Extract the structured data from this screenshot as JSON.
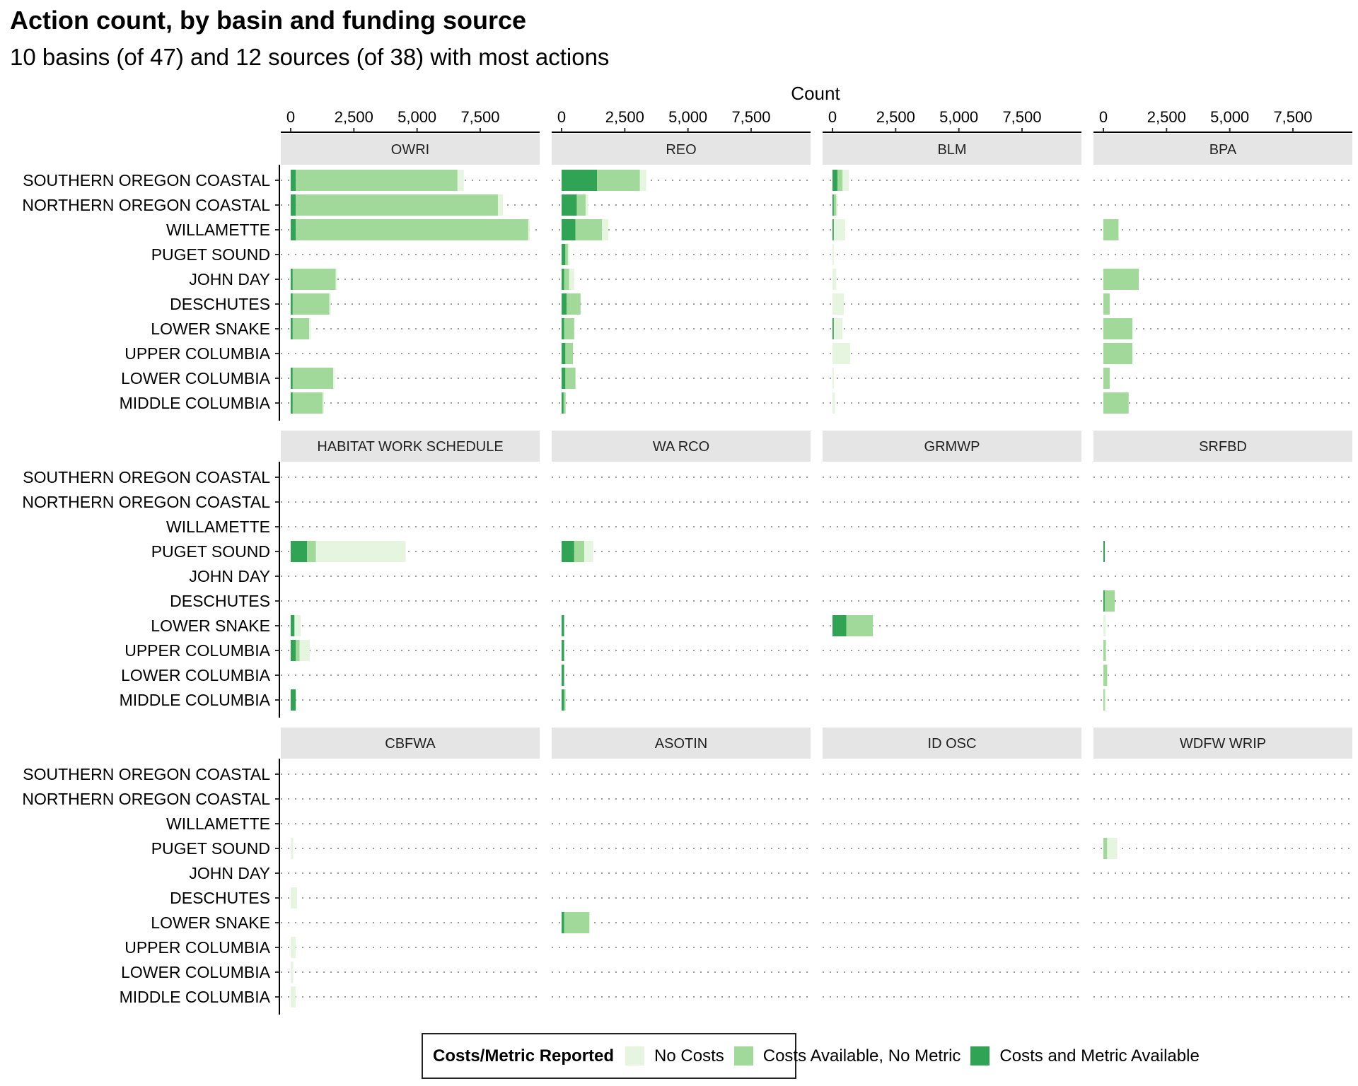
{
  "title": "Action count, by basin and funding source",
  "subtitle": "10 basins (of 47) and 12 sources (of 38) with most actions",
  "chart_data": {
    "type": "bar",
    "orientation": "horizontal",
    "stacked": true,
    "xlabel": "Count",
    "x_axis_position": "top",
    "xlim": [
      0,
      10000
    ],
    "x_ticks": [
      0,
      2500,
      5000,
      7500
    ],
    "x_tick_labels": [
      "0",
      "2,500",
      "5,000",
      "7,500"
    ],
    "grid": "dotted horizontal",
    "legend_position": "bottom",
    "legend_title": "Costs/Metric Reported",
    "colors": {
      "No Costs": "#e5f5e0",
      "Costs Available, No Metric": "#a1d99b",
      "Costs and Metric Available": "#31a354"
    },
    "categories": [
      "SOUTHERN OREGON COASTAL",
      "NORTHERN OREGON COASTAL",
      "WILLAMETTE",
      "PUGET SOUND",
      "JOHN DAY",
      "DESCHUTES",
      "LOWER SNAKE",
      "UPPER COLUMBIA",
      "LOWER COLUMBIA",
      "MIDDLE COLUMBIA"
    ],
    "series_names": [
      "Costs and Metric Available",
      "Costs Available, No Metric",
      "No Costs"
    ],
    "panels": [
      {
        "name": "OWRI",
        "values": [
          [
            200,
            6400,
            250
          ],
          [
            200,
            8000,
            200
          ],
          [
            200,
            9200,
            50
          ],
          [
            0,
            0,
            0
          ],
          [
            80,
            1700,
            20
          ],
          [
            80,
            1450,
            20
          ],
          [
            80,
            650,
            20
          ],
          [
            0,
            0,
            0
          ],
          [
            80,
            1600,
            20
          ],
          [
            80,
            1180,
            20
          ]
        ]
      },
      {
        "name": "REO",
        "values": [
          [
            1400,
            1700,
            250
          ],
          [
            600,
            350,
            100
          ],
          [
            550,
            1050,
            250
          ],
          [
            150,
            100,
            50
          ],
          [
            100,
            200,
            200
          ],
          [
            200,
            550,
            0
          ],
          [
            100,
            400,
            0
          ],
          [
            150,
            300,
            0
          ],
          [
            150,
            400,
            0
          ],
          [
            80,
            80,
            0
          ]
        ]
      },
      {
        "name": "BLM",
        "values": [
          [
            200,
            200,
            250
          ],
          [
            50,
            100,
            50
          ],
          [
            50,
            0,
            450
          ],
          [
            0,
            0,
            50
          ],
          [
            0,
            0,
            150
          ],
          [
            0,
            0,
            450
          ],
          [
            50,
            0,
            350
          ],
          [
            0,
            0,
            700
          ],
          [
            0,
            0,
            50
          ],
          [
            0,
            0,
            100
          ]
        ]
      },
      {
        "name": "BPA",
        "values": [
          [
            0,
            0,
            0
          ],
          [
            0,
            0,
            0
          ],
          [
            0,
            600,
            0
          ],
          [
            0,
            0,
            0
          ],
          [
            0,
            1400,
            0
          ],
          [
            0,
            250,
            0
          ],
          [
            0,
            1150,
            0
          ],
          [
            0,
            1150,
            0
          ],
          [
            0,
            250,
            0
          ],
          [
            0,
            1000,
            0
          ]
        ]
      },
      {
        "name": "HABITAT WORK SCHEDULE",
        "values": [
          [
            0,
            0,
            0
          ],
          [
            0,
            0,
            0
          ],
          [
            0,
            0,
            0
          ],
          [
            650,
            350,
            3550
          ],
          [
            0,
            0,
            0
          ],
          [
            0,
            0,
            0
          ],
          [
            150,
            0,
            250
          ],
          [
            200,
            150,
            400
          ],
          [
            0,
            0,
            0
          ],
          [
            200,
            0,
            0
          ]
        ]
      },
      {
        "name": "WA RCO",
        "values": [
          [
            0,
            0,
            0
          ],
          [
            0,
            0,
            0
          ],
          [
            0,
            0,
            0
          ],
          [
            500,
            400,
            350
          ],
          [
            0,
            0,
            0
          ],
          [
            0,
            0,
            0
          ],
          [
            100,
            0,
            0
          ],
          [
            100,
            0,
            0
          ],
          [
            100,
            0,
            0
          ],
          [
            100,
            50,
            0
          ]
        ]
      },
      {
        "name": "GRMWP",
        "values": [
          [
            0,
            0,
            0
          ],
          [
            0,
            0,
            0
          ],
          [
            0,
            0,
            0
          ],
          [
            0,
            0,
            0
          ],
          [
            0,
            0,
            0
          ],
          [
            0,
            0,
            0
          ],
          [
            550,
            1050,
            0
          ],
          [
            0,
            0,
            0
          ],
          [
            0,
            0,
            0
          ],
          [
            0,
            0,
            0
          ]
        ]
      },
      {
        "name": "SRFBD",
        "values": [
          [
            0,
            0,
            0
          ],
          [
            0,
            0,
            0
          ],
          [
            0,
            0,
            0
          ],
          [
            50,
            0,
            0
          ],
          [
            0,
            0,
            0
          ],
          [
            50,
            400,
            0
          ],
          [
            0,
            0,
            100
          ],
          [
            0,
            100,
            0
          ],
          [
            0,
            150,
            0
          ],
          [
            0,
            50,
            50
          ]
        ]
      },
      {
        "name": "CBFWA",
        "values": [
          [
            0,
            0,
            0
          ],
          [
            0,
            0,
            0
          ],
          [
            0,
            0,
            0
          ],
          [
            0,
            0,
            100
          ],
          [
            0,
            0,
            0
          ],
          [
            0,
            0,
            250
          ],
          [
            0,
            0,
            0
          ],
          [
            0,
            0,
            200
          ],
          [
            0,
            0,
            100
          ],
          [
            0,
            0,
            200
          ]
        ]
      },
      {
        "name": "ASOTIN",
        "values": [
          [
            0,
            0,
            0
          ],
          [
            0,
            0,
            0
          ],
          [
            0,
            0,
            0
          ],
          [
            0,
            0,
            0
          ],
          [
            0,
            0,
            0
          ],
          [
            0,
            0,
            0
          ],
          [
            100,
            1000,
            0
          ],
          [
            0,
            0,
            0
          ],
          [
            0,
            0,
            0
          ],
          [
            0,
            0,
            0
          ]
        ]
      },
      {
        "name": "ID OSC",
        "values": [
          [
            0,
            0,
            0
          ],
          [
            0,
            0,
            0
          ],
          [
            0,
            0,
            0
          ],
          [
            0,
            0,
            0
          ],
          [
            0,
            0,
            0
          ],
          [
            0,
            0,
            0
          ],
          [
            0,
            0,
            0
          ],
          [
            0,
            0,
            0
          ],
          [
            0,
            0,
            0
          ],
          [
            0,
            0,
            0
          ]
        ]
      },
      {
        "name": "WDFW WRIP",
        "values": [
          [
            0,
            0,
            0
          ],
          [
            0,
            0,
            0
          ],
          [
            0,
            0,
            0
          ],
          [
            0,
            150,
            400
          ],
          [
            0,
            0,
            0
          ],
          [
            0,
            0,
            0
          ],
          [
            0,
            0,
            0
          ],
          [
            0,
            0,
            0
          ],
          [
            0,
            0,
            0
          ],
          [
            0,
            0,
            0
          ]
        ]
      }
    ]
  }
}
